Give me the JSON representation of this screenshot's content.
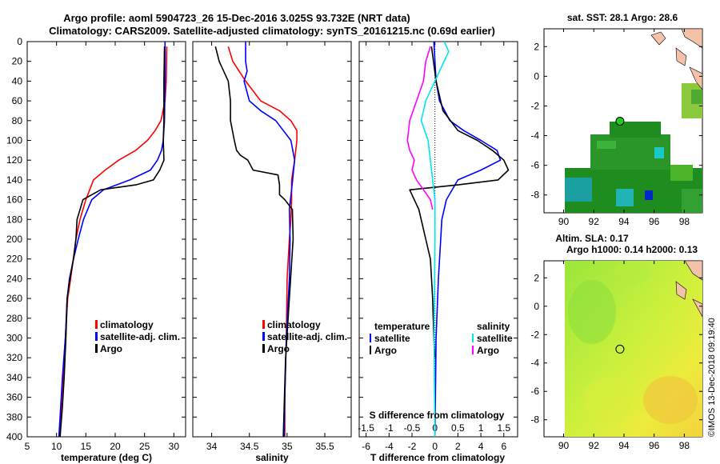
{
  "title": {
    "line1": "Argo profile: aoml 5904723_26 15-Dec-2016 3.025S 93.732E (NRT data)",
    "line2": "Climatology: CARS2009. Satellite-adjusted climatology: synTS_20161215.nc (0.69d earlier)"
  },
  "colors": {
    "climatology": "#ff0000",
    "satellite": "#0000ff",
    "argo": "#000000",
    "salinity_satellite": "#00e5ee",
    "salinity_argo": "#ff00ff",
    "sst_map_bg": "#1e8c1e",
    "land": "#f4c2a8"
  },
  "depth_axis": {
    "ticks": [
      0,
      20,
      40,
      60,
      80,
      100,
      120,
      140,
      160,
      180,
      200,
      220,
      240,
      260,
      280,
      300,
      320,
      340,
      360,
      380,
      400
    ],
    "range": [
      0,
      400
    ]
  },
  "chart_data": [
    {
      "type": "line",
      "name": "temperature-profile",
      "xlabel": "temperature (deg C)",
      "xlim": [
        5,
        32
      ],
      "xticks": [
        5,
        10,
        15,
        20,
        25,
        30
      ],
      "ylim": [
        400,
        0
      ],
      "legend": [
        "climatology",
        "satellite-adj. clim.",
        "Argo"
      ],
      "series": [
        {
          "name": "climatology",
          "color_key": "climatology",
          "x": [
            28.8,
            28.7,
            28.5,
            27.8,
            26.8,
            25.5,
            23.5,
            20.6,
            18.3,
            16.3,
            15.0,
            14.0,
            13.3,
            12.4,
            11.9,
            11.5,
            11.1,
            10.8,
            10.5
          ],
          "y": [
            5,
            40,
            60,
            80,
            90,
            100,
            110,
            120,
            130,
            140,
            160,
            180,
            200,
            240,
            260,
            300,
            340,
            370,
            400
          ]
        },
        {
          "name": "satellite-adj. clim.",
          "color_key": "satellite",
          "x": [
            28.5,
            28.5,
            28.4,
            28.2,
            27.9,
            27.2,
            26.0,
            22.5,
            18.0,
            16.0,
            14.6,
            13.7,
            12.9,
            12.2,
            11.8,
            11.5,
            11.0,
            10.6,
            10.4
          ],
          "y": [
            0,
            40,
            80,
            100,
            110,
            120,
            130,
            140,
            150,
            160,
            180,
            200,
            220,
            240,
            260,
            300,
            340,
            380,
            400
          ]
        },
        {
          "name": "Argo",
          "color_key": "argo",
          "x": [
            28.4,
            28.3,
            28.3,
            28.2,
            28.3,
            27.6,
            26.5,
            23.5,
            17.5,
            14.5,
            13.5,
            13.3,
            12.9,
            12.3,
            11.8,
            11.6,
            11.3,
            11.0,
            10.6
          ],
          "y": [
            5,
            40,
            80,
            100,
            120,
            130,
            140,
            145,
            150,
            160,
            180,
            200,
            220,
            240,
            260,
            300,
            340,
            370,
            400
          ]
        }
      ]
    },
    {
      "type": "line",
      "name": "salinity-profile",
      "xlabel": "salinity",
      "xlim": [
        33.75,
        35.85
      ],
      "xticks": [
        34,
        34.5,
        35,
        35.5
      ],
      "ylim": [
        400,
        0
      ],
      "legend": [
        "climatology",
        "satellite-adj. clim.",
        "Argo"
      ],
      "series": [
        {
          "name": "climatology",
          "color_key": "climatology",
          "x": [
            34.22,
            34.28,
            34.45,
            34.65,
            34.9,
            35.05,
            35.13,
            35.13,
            35.1,
            35.06,
            35.06,
            35.05,
            35.03,
            35.0,
            34.99,
            34.97,
            34.97
          ],
          "y": [
            5,
            20,
            40,
            60,
            70,
            80,
            90,
            100,
            120,
            140,
            160,
            180,
            200,
            240,
            300,
            360,
            400
          ]
        },
        {
          "name": "satellite-adj. clim.",
          "color_key": "satellite",
          "x": [
            34.45,
            34.45,
            34.47,
            34.43,
            34.5,
            34.65,
            34.85,
            35.05,
            35.1,
            35.06,
            35.03,
            35.04,
            35.03,
            34.99,
            34.97,
            34.96
          ],
          "y": [
            0,
            20,
            30,
            40,
            60,
            70,
            80,
            100,
            120,
            150,
            170,
            200,
            240,
            300,
            360,
            400
          ]
        },
        {
          "name": "Argo",
          "color_key": "argo",
          "x": [
            34.05,
            34.1,
            34.22,
            34.25,
            34.25,
            34.3,
            34.33,
            34.38,
            34.48,
            34.55,
            34.88,
            34.9,
            34.9,
            34.97,
            35.07,
            35.08,
            35.03,
            34.98,
            34.95
          ],
          "y": [
            5,
            20,
            40,
            60,
            80,
            100,
            110,
            115,
            120,
            130,
            135,
            145,
            155,
            160,
            170,
            200,
            260,
            320,
            400
          ]
        }
      ]
    },
    {
      "type": "line",
      "name": "difference-profile",
      "xlabel": "T difference from climatology",
      "xlabel_top": "S difference from climatology",
      "xlim": [
        -6.6,
        7.2
      ],
      "xticks": [
        -6,
        -4,
        -2,
        0,
        2,
        4,
        6
      ],
      "xlim_top": [
        -1.65,
        1.8
      ],
      "xticks_top": [
        -1.5,
        -1,
        -0.5,
        0,
        0.5,
        1,
        1.5
      ],
      "ylim": [
        400,
        0
      ],
      "legend_temperature": [
        "temperature",
        "satellite",
        "Argo"
      ],
      "legend_salinity": [
        "salinity",
        "satellite",
        "Argo"
      ],
      "series": [
        {
          "name": "temperature satellite",
          "color_key": "satellite",
          "axis": "bottom",
          "x": [
            -0.1,
            0.1,
            0.4,
            1.3,
            2.5,
            4.0,
            5.4,
            5.7,
            4.0,
            2.0,
            1.0,
            0.6,
            0.5,
            0.3,
            0.1,
            0.0
          ],
          "y": [
            0,
            40,
            60,
            80,
            90,
            100,
            110,
            120,
            130,
            140,
            160,
            180,
            200,
            240,
            300,
            400
          ]
        },
        {
          "name": "temperature Argo",
          "color_key": "argo",
          "axis": "bottom",
          "x": [
            -0.3,
            0.1,
            0.7,
            2.0,
            3.7,
            5.0,
            6.0,
            6.4,
            5.5,
            2.0,
            -2.2,
            -1.4,
            -0.8,
            -0.4,
            -0.2,
            -0.1,
            0.0
          ],
          "y": [
            5,
            40,
            70,
            90,
            100,
            110,
            120,
            130,
            140,
            145,
            150,
            170,
            200,
            220,
            260,
            300,
            320
          ]
        },
        {
          "name": "salinity satellite",
          "color_key": "salinity_satellite",
          "axis": "top",
          "x": [
            0.2,
            0.3,
            0.1,
            -0.2,
            -0.3,
            -0.15,
            -0.1,
            -0.05,
            0.0,
            0.0,
            -0.02,
            0.0
          ],
          "y": [
            0,
            10,
            30,
            60,
            80,
            100,
            120,
            140,
            160,
            200,
            300,
            400
          ]
        },
        {
          "name": "salinity Argo",
          "color_key": "salinity_argo",
          "axis": "top",
          "x": [
            -0.1,
            -0.2,
            -0.25,
            -0.4,
            -0.55,
            -0.6,
            -0.55,
            -0.45,
            -0.5,
            -0.4,
            -0.1,
            -0.05
          ],
          "y": [
            5,
            20,
            40,
            60,
            80,
            100,
            110,
            120,
            130,
            140,
            160,
            170
          ]
        }
      ]
    }
  ],
  "sst_map": {
    "title": "sat. SST: 28.1  Argo: 28.6",
    "xticks": [
      90,
      92,
      94,
      96,
      98
    ],
    "yticks": [
      2,
      0,
      -2,
      -4,
      -6,
      -8
    ],
    "xlim": [
      88.7,
      99.2
    ],
    "ylim": [
      -9.2,
      3.2
    ],
    "argo_position": {
      "lon": 93.732,
      "lat": -3.025
    }
  },
  "sla_map": {
    "title_line1": "Altim. SLA: 0.17",
    "title_line2": "Argo h1000: 0.14 h2000: 0.13",
    "xticks": [
      90,
      92,
      94,
      96,
      98
    ],
    "yticks": [
      2,
      0,
      -2,
      -4,
      -6,
      -8
    ],
    "xlim": [
      88.7,
      99.2
    ],
    "ylim": [
      -9.2,
      3.2
    ],
    "argo_position": {
      "lon": 93.732,
      "lat": -3.025
    }
  },
  "credit": "©IMOS 13-Dec-2018 09:19:40"
}
